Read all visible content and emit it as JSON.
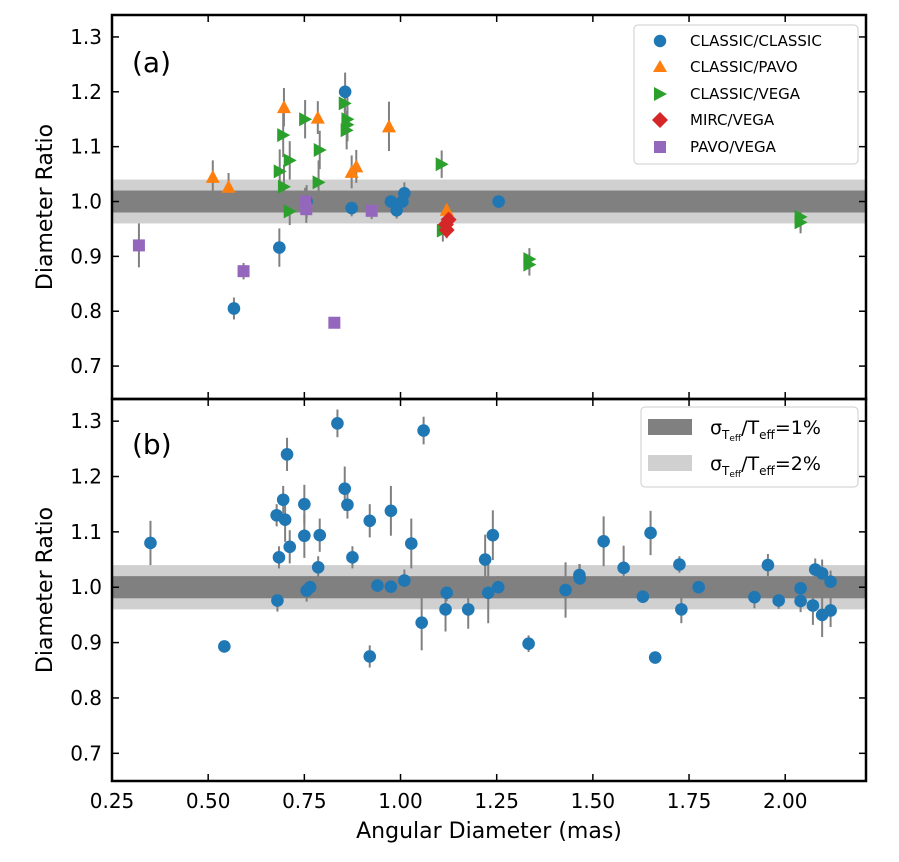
{
  "chart_data": {
    "type": "scatter",
    "xlabel": "Angular Diameter (mas)",
    "xlim": [
      0.25,
      2.21
    ],
    "xticks": [
      "0.25",
      "0.50",
      "0.75",
      "1.00",
      "1.25",
      "1.50",
      "1.75",
      "2.00"
    ],
    "colors": {
      "CLASSIC/CLASSIC": "#1f77b4",
      "CLASSIC/PAVO": "#ff7f0e",
      "CLASSIC/VEGA": "#2ca02c",
      "MIRC/VEGA": "#d62728",
      "PAVO/VEGA": "#9467bd",
      "errorbar": "#808080",
      "band1": "#808080",
      "band2": "#d0d0d0"
    },
    "panels": [
      {
        "label": "(a)",
        "ylabel": "Diameter Ratio",
        "ylim": [
          0.64,
          1.34
        ],
        "yticks": [
          "0.7",
          "0.8",
          "0.9",
          "1.0",
          "1.1",
          "1.2",
          "1.3"
        ],
        "legend_position": "top-right",
        "series": [
          {
            "name": "CLASSIC/CLASSIC",
            "marker": "circle",
            "points": [
              [
                0.567,
                0.805,
                0.02
              ],
              [
                0.685,
                0.916,
                0.035
              ],
              [
                0.756,
                1.0,
                0.03
              ],
              [
                0.856,
                1.2,
                0.035
              ],
              [
                0.873,
                0.988,
                0.015
              ],
              [
                0.975,
                1.0,
                0.02
              ],
              [
                0.99,
                0.984,
                0.015
              ],
              [
                1.005,
                1.0,
                0.02
              ],
              [
                1.01,
                1.015,
                0.02
              ],
              [
                1.255,
                1.0,
                0.01
              ]
            ]
          },
          {
            "name": "CLASSIC/PAVO",
            "marker": "triangle-up",
            "points": [
              [
                0.512,
                1.045,
                0.03
              ],
              [
                0.553,
                1.027,
                0.025
              ],
              [
                0.697,
                1.172,
                0.035
              ],
              [
                0.785,
                1.153,
                0.03
              ],
              [
                0.873,
                1.054,
                0.03
              ],
              [
                0.885,
                1.064,
                0.03
              ],
              [
                0.97,
                1.137,
                0.045
              ],
              [
                1.12,
                0.985,
                0.03
              ]
            ]
          },
          {
            "name": "CLASSIC/VEGA",
            "marker": "triangle-right",
            "points": [
              [
                0.686,
                1.055,
                0.04
              ],
              [
                0.695,
                1.121,
                0.04
              ],
              [
                0.697,
                1.027,
                0.04
              ],
              [
                0.712,
                1.075,
                0.035
              ],
              [
                0.712,
                0.982,
                0.025
              ],
              [
                0.752,
                1.15,
                0.035
              ],
              [
                0.787,
                1.035,
                0.04
              ],
              [
                0.79,
                1.094,
                0.035
              ],
              [
                0.855,
                1.179,
                0.03
              ],
              [
                0.86,
                1.13,
                0.035
              ],
              [
                0.862,
                1.15,
                0.04
              ],
              [
                0.862,
                1.14,
                0.03
              ],
              [
                1.107,
                1.068,
                0.025
              ],
              [
                1.11,
                0.947,
                0.02
              ],
              [
                1.335,
                0.895,
                0.02
              ],
              [
                1.335,
                0.885,
                0.02
              ],
              [
                2.04,
                0.972,
                0.025
              ],
              [
                2.04,
                0.962,
                0.02
              ]
            ]
          },
          {
            "name": "MIRC/VEGA",
            "marker": "diamond",
            "points": [
              [
                1.118,
                0.958,
                0.015
              ],
              [
                1.12,
                0.948,
                0.015
              ],
              [
                1.125,
                0.967,
                0.015
              ]
            ]
          },
          {
            "name": "PAVO/VEGA",
            "marker": "square",
            "points": [
              [
                0.32,
                0.92,
                0.04
              ],
              [
                0.592,
                0.873,
                0.015
              ],
              [
                0.752,
                1.0,
                0.025
              ],
              [
                0.755,
                0.986,
                0.025
              ],
              [
                0.828,
                0.779,
                0.01
              ],
              [
                0.925,
                0.983,
                0.015
              ]
            ]
          }
        ]
      },
      {
        "label": "(b)",
        "ylabel": "Diameter Ratio",
        "ylim": [
          0.65,
          1.34
        ],
        "yticks": [
          "0.7",
          "0.8",
          "0.9",
          "1.0",
          "1.1",
          "1.2",
          "1.3"
        ],
        "legend_position": "top-right",
        "bands_legend": [
          {
            "prefix": "σ",
            "sub1": "T",
            "sub2": "eff",
            "slash": "/T",
            "sub3": "eff",
            "suffix": "=1%"
          },
          {
            "prefix": "σ",
            "sub1": "T",
            "sub2": "eff",
            "slash": "/T",
            "sub3": "eff",
            "suffix": "=2%"
          }
        ],
        "series": [
          {
            "name": "CLASSIC/CLASSIC",
            "marker": "circle",
            "points": [
              [
                0.35,
                1.08,
                0.04
              ],
              [
                0.542,
                0.893,
                0.01
              ],
              [
                0.678,
                1.13,
                0.02
              ],
              [
                0.68,
                0.976,
                0.02
              ],
              [
                0.684,
                1.054,
                0.02
              ],
              [
                0.695,
                1.158,
                0.025
              ],
              [
                0.7,
                1.122,
                0.04
              ],
              [
                0.705,
                1.24,
                0.03
              ],
              [
                0.712,
                1.073,
                0.03
              ],
              [
                0.75,
                1.15,
                0.035
              ],
              [
                0.75,
                1.093,
                0.04
              ],
              [
                0.756,
                0.994,
                0.02
              ],
              [
                0.765,
                1.0,
                0.02
              ],
              [
                0.786,
                1.036,
                0.02
              ],
              [
                0.79,
                1.094,
                0.03
              ],
              [
                0.836,
                1.296,
                0.025
              ],
              [
                0.855,
                1.178,
                0.04
              ],
              [
                0.862,
                1.149,
                0.025
              ],
              [
                0.875,
                1.054,
                0.02
              ],
              [
                0.92,
                1.12,
                0.03
              ],
              [
                0.92,
                0.875,
                0.02
              ],
              [
                0.94,
                1.003,
                0.015
              ],
              [
                0.975,
                1.138,
                0.045
              ],
              [
                0.975,
                1.001,
                0.015
              ],
              [
                1.01,
                1.012,
                0.02
              ],
              [
                1.028,
                1.079,
                0.045
              ],
              [
                1.055,
                0.936,
                0.05
              ],
              [
                1.06,
                1.283,
                0.025
              ],
              [
                1.117,
                0.96,
                0.04
              ],
              [
                1.12,
                0.99,
                0.015
              ],
              [
                1.176,
                0.96,
                0.035
              ],
              [
                1.22,
                1.05,
                0.045
              ],
              [
                1.228,
                0.99,
                0.055
              ],
              [
                1.24,
                1.094,
                0.045
              ],
              [
                1.254,
                1.0,
                0.02
              ],
              [
                1.333,
                0.898,
                0.015
              ],
              [
                1.429,
                0.995,
                0.05
              ],
              [
                1.465,
                1.022,
                0.02
              ],
              [
                1.466,
                1.016,
                0.025
              ],
              [
                1.528,
                1.083,
                0.045
              ],
              [
                1.58,
                1.035,
                0.04
              ],
              [
                1.63,
                0.983,
                0.01
              ],
              [
                1.65,
                1.098,
                0.04
              ],
              [
                1.662,
                0.873,
                0.01
              ],
              [
                1.725,
                1.041,
                0.015
              ],
              [
                1.73,
                0.96,
                0.025
              ],
              [
                1.775,
                1.0,
                0.01
              ],
              [
                1.92,
                0.982,
                0.02
              ],
              [
                1.955,
                1.04,
                0.02
              ],
              [
                1.983,
                0.976,
                0.015
              ],
              [
                2.04,
                0.998,
                0.02
              ],
              [
                2.04,
                0.975,
                0.02
              ],
              [
                2.072,
                0.967,
                0.035
              ],
              [
                2.078,
                1.032,
                0.02
              ],
              [
                2.096,
                1.025,
                0.025
              ],
              [
                2.096,
                0.95,
                0.04
              ],
              [
                2.118,
                1.01,
                0.02
              ],
              [
                2.118,
                0.958,
                0.03
              ]
            ]
          }
        ]
      }
    ]
  }
}
